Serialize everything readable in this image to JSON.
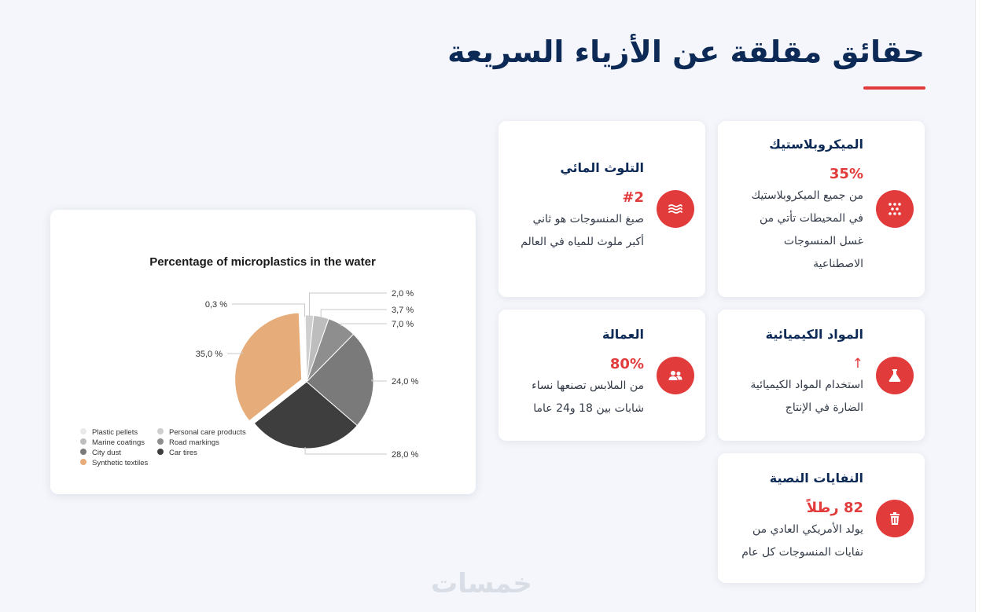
{
  "page": {
    "title": "حقائق مقلقة عن الأزياء السريعة",
    "accent_color": "#e23b3b",
    "title_color": "#0c2a55"
  },
  "cards": {
    "microplastics": {
      "title": "الميكروبلاستيك",
      "stat": "35%",
      "lines": [
        "من جميع الميكروبلاستيك",
        "في المحيطات تأتي من",
        "غسل المنسوجات",
        "الاصطناعية"
      ],
      "icon": "dots-pattern-icon"
    },
    "water": {
      "title": "التلوث المائي",
      "stat": "#2",
      "lines": [
        "صبغ المنسوجات هو ثاني",
        "أكبر ملوث للمياه في العالم"
      ],
      "icon": "water-waves-icon"
    },
    "chemicals": {
      "title": "المواد الكيميائية",
      "stat": "↑",
      "lines": [
        "استخدام المواد الكيميائية",
        "الضارة في الإنتاج"
      ],
      "icon": "flask-icon"
    },
    "labor": {
      "title": "العمالة",
      "stat": "80%",
      "lines": [
        "من الملابس تصنعها نساء",
        "شابات بين 18 و24 عاما"
      ],
      "icon": "users-icon"
    },
    "waste": {
      "title": "النفايات النصية",
      "stat": "82 رطلاً",
      "lines": [
        "يولد الأمريكي العادي من",
        "نفايات المنسوجات كل عام"
      ],
      "icon": "trash-icon"
    }
  },
  "chart_data": {
    "type": "pie",
    "title": "Percentage of microplastics in the water",
    "categories": [
      "Plastic pellets",
      "Personal care products",
      "Marine coatings",
      "Road markings",
      "City dust",
      "Car tires",
      "Synthetic textiles"
    ],
    "values": [
      0.3,
      2.0,
      3.7,
      7.0,
      24.0,
      28.0,
      35.0
    ],
    "labels": [
      "0,3 %",
      "2,0 %",
      "3,7 %",
      "7,0 %",
      "24,0 %",
      "28,0 %",
      "35,0 %"
    ],
    "colors": [
      "#eaeaea",
      "#cfcfcf",
      "#bdbdbd",
      "#8e8e8e",
      "#7a7a7a",
      "#3e3e3e",
      "#e6ad7a"
    ],
    "legend_position": "bottom-left",
    "exploded": "Synthetic textiles"
  },
  "watermark": "خمسات"
}
